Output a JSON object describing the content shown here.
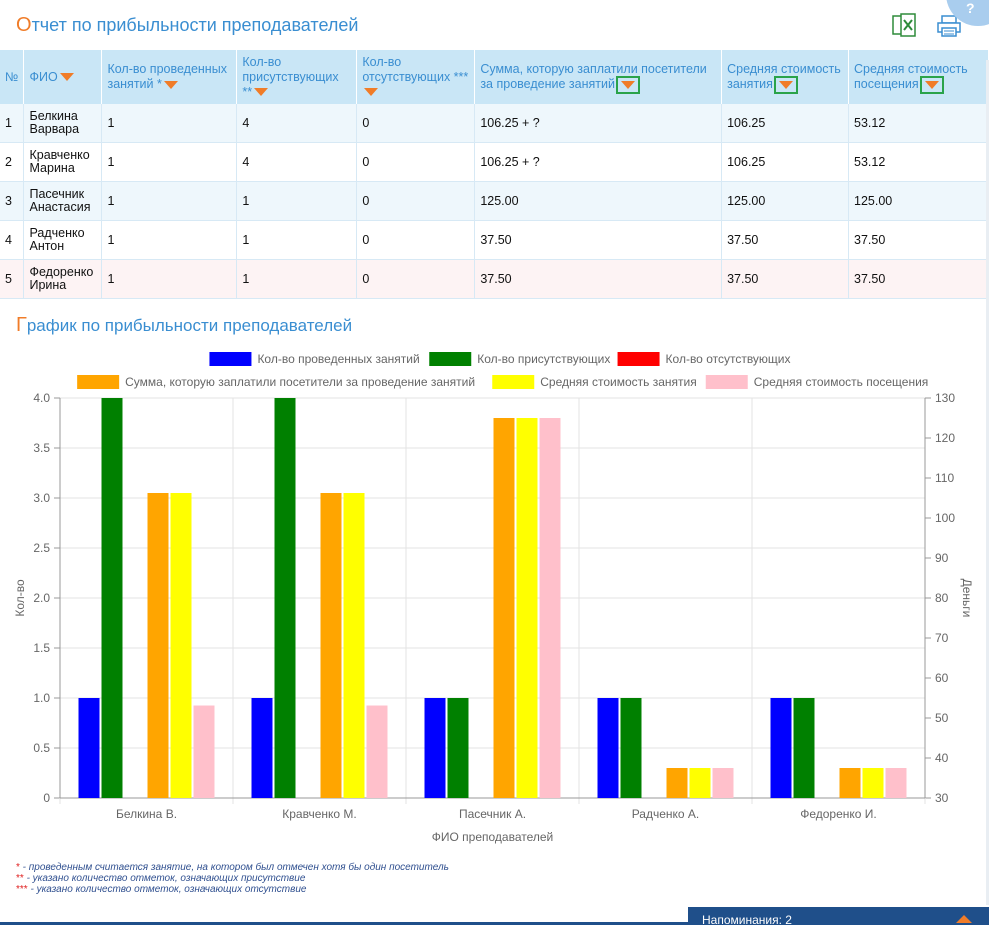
{
  "header": {
    "title_first": "О",
    "title_rest": "тчет по прибыльности преподавателей",
    "excel_icon": "excel-icon",
    "print_icon": "printer-icon",
    "corner_label": "?"
  },
  "table": {
    "columns": [
      {
        "label": "№",
        "sort": false
      },
      {
        "label": "ФИО",
        "sort": true
      },
      {
        "label": "Кол-во проведенных занятий *",
        "sort": true
      },
      {
        "label": "Кол-во присутствующих **",
        "sort": true
      },
      {
        "label": "Кол-во отсутствующих ***",
        "sort": true
      },
      {
        "label": "Сумма, которую заплатили посетители за проведение занятий",
        "sort": true,
        "boxed": true
      },
      {
        "label": "Средняя стоимость занятия",
        "sort": true,
        "boxed": true
      },
      {
        "label": "Средняя стоимость посещения",
        "sort": true,
        "boxed": true
      }
    ],
    "rows": [
      [
        "1",
        "Белкина Варвара",
        "1",
        "4",
        "0",
        "106.25 + ?",
        "106.25",
        "53.12"
      ],
      [
        "2",
        "Кравченко Марина",
        "1",
        "4",
        "0",
        "106.25 + ?",
        "106.25",
        "53.12"
      ],
      [
        "3",
        "Пасечник Анастасия",
        "1",
        "1",
        "0",
        "125.00",
        "125.00",
        "125.00"
      ],
      [
        "4",
        "Радченко Антон",
        "1",
        "1",
        "0",
        "37.50",
        "37.50",
        "37.50"
      ],
      [
        "5",
        "Федоренко Ирина",
        "1",
        "1",
        "0",
        "37.50",
        "37.50",
        "37.50"
      ]
    ]
  },
  "chart_section": {
    "title_first": "Г",
    "title_rest": "рафик по прибыльности преподавателей"
  },
  "chart_data": {
    "type": "bar",
    "categories": [
      "Белкина В.",
      "Кравченко М.",
      "Пасечник А.",
      "Радченко А.",
      "Федоренко И."
    ],
    "series": [
      {
        "name": "Кол-во проведенных занятий",
        "axis": "left",
        "color": "#0000ff",
        "values": [
          1,
          1,
          1,
          1,
          1
        ]
      },
      {
        "name": "Кол-во присутствующих",
        "axis": "left",
        "color": "#008000",
        "values": [
          4,
          4,
          1,
          1,
          1
        ]
      },
      {
        "name": "Кол-во отсутствующих",
        "axis": "left",
        "color": "#ff0000",
        "values": [
          0,
          0,
          0,
          0,
          0
        ]
      },
      {
        "name": "Сумма, которую заплатили посетители за проведение занятий",
        "axis": "right",
        "color": "#ffa500",
        "values": [
          106.25,
          106.25,
          125,
          37.5,
          37.5
        ]
      },
      {
        "name": "Средняя стоимость занятия",
        "axis": "right",
        "color": "#ffff00",
        "values": [
          106.25,
          106.25,
          125,
          37.5,
          37.5
        ]
      },
      {
        "name": "Средняя стоимость посещения",
        "axis": "right",
        "color": "#ffc0cb",
        "values": [
          53.12,
          53.12,
          125,
          37.5,
          37.5
        ]
      }
    ],
    "xlabel": "ФИО преподавателей",
    "ylabel_left": "Кол-во",
    "ylabel_right": "Деньги",
    "ylim_left": [
      0,
      4
    ],
    "yticks_left": [
      "0",
      "0.5",
      "1.0",
      "1.5",
      "2.0",
      "2.5",
      "3.0",
      "3.5",
      "4.0"
    ],
    "ylim_right": [
      30,
      130
    ],
    "yticks_right": [
      "30",
      "40",
      "50",
      "60",
      "70",
      "80",
      "90",
      "100",
      "110",
      "120",
      "130"
    ],
    "grid": true,
    "legend_position": "top"
  },
  "footnotes": [
    {
      "mark": "*",
      "text": " - проведенным считается занятие, на котором был отмечен хотя бы один посетитель"
    },
    {
      "mark": "**",
      "text": " - указано количество отметок, означающих присутствие"
    },
    {
      "mark": "***",
      "text": " - указано количество отметок, означающих отсутствие"
    }
  ],
  "reminder": {
    "label": "Напоминания: 2"
  }
}
